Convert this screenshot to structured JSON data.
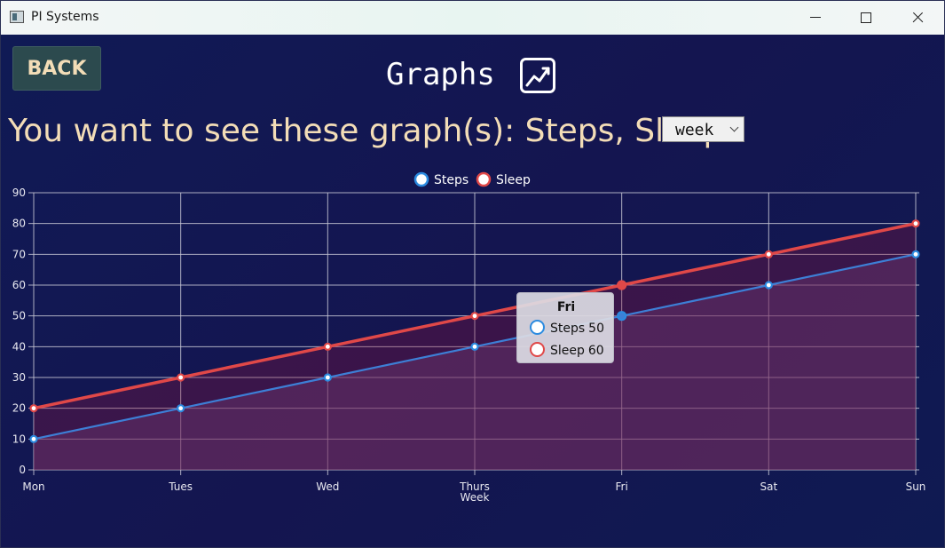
{
  "window": {
    "title": "PI Systems"
  },
  "header": {
    "back_label": "BACK",
    "title": "Graphs",
    "subtitle": "You want to see these graph(s): Steps, Sleep",
    "period": "week"
  },
  "colors": {
    "steps": "#3d7fd6",
    "sleep": "#e04848",
    "steps_marker_border": "#2c8be0",
    "sleep_marker_border": "#e04848"
  },
  "chart_data": {
    "type": "line",
    "categories": [
      "Mon",
      "Tues",
      "Wed",
      "Thurs",
      "Fri",
      "Sat",
      "Sun"
    ],
    "xlabel": "Week",
    "ylabel": "",
    "ylim": [
      0,
      90
    ],
    "yticks": [
      0,
      10,
      20,
      30,
      40,
      50,
      60,
      70,
      80,
      90
    ],
    "grid": true,
    "legend_position": "top-center",
    "series": [
      {
        "name": "Steps",
        "values": [
          10,
          20,
          30,
          40,
          50,
          60,
          70
        ]
      },
      {
        "name": "Sleep",
        "values": [
          20,
          30,
          40,
          50,
          60,
          70,
          80
        ]
      }
    ],
    "tooltip": {
      "title": "Fri",
      "items": [
        {
          "name": "Steps",
          "value": 50
        },
        {
          "name": "Sleep",
          "value": 60
        }
      ]
    }
  }
}
